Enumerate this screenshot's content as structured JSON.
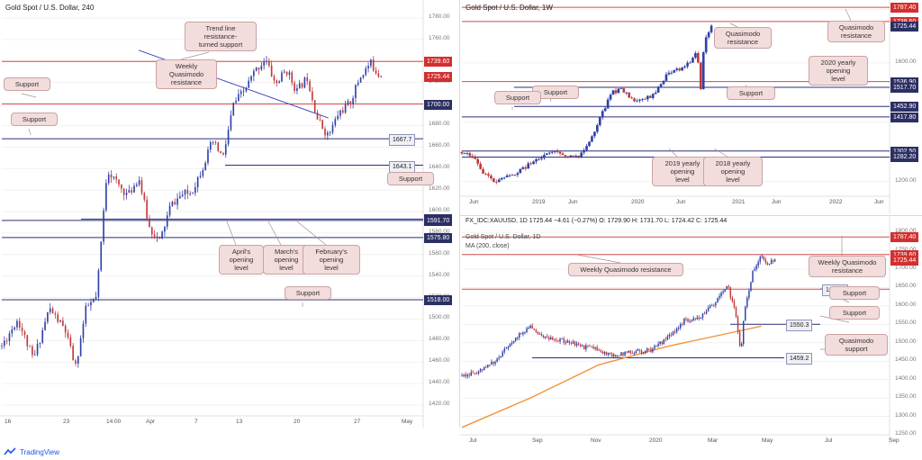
{
  "brand": {
    "name": "TradingView"
  },
  "colors": {
    "bull": "#2f40a8",
    "bear": "#c0393b",
    "resistance": "#d44a4a",
    "support": "#2b2f7a",
    "trend": "#3a44c2",
    "ma": "#f09438"
  },
  "panels": {
    "h4": {
      "title": "Gold Spot / U.S. Dollar, 240",
      "y_ticks": [
        "1780.00",
        "1760.00",
        "1740.00",
        "1720.00",
        "1700.00",
        "1680.00",
        "1660.00",
        "1640.00",
        "1620.00",
        "1600.00",
        "1580.00",
        "1560.00",
        "1540.00",
        "1520.00",
        "1500.00",
        "1480.00",
        "1460.00",
        "1440.00",
        "1420.00"
      ],
      "x_ticks": [
        "16",
        "23",
        "14:00",
        "Apr",
        "7",
        "13",
        "20",
        "27",
        "May"
      ],
      "price_tags": [
        {
          "text": "1739.60",
          "style": "red"
        },
        {
          "text": "1725.44",
          "style": "red"
        },
        {
          "text": "1700.00",
          "style": "navy"
        },
        {
          "text": "1667.7",
          "style": "gray"
        },
        {
          "text": "1643.1",
          "style": "gray"
        },
        {
          "text": "1593.00",
          "style": "navy"
        },
        {
          "text": "1591.70",
          "style": "navy"
        },
        {
          "text": "1575.80",
          "style": "navy"
        },
        {
          "text": "1518.00",
          "style": "navy"
        }
      ],
      "annotations": [
        {
          "text": "Trend line\nresistance-\nturned support"
        },
        {
          "text": "Weekly\nQuasimodo\nresistance"
        },
        {
          "text": "Support"
        },
        {
          "text": "Support"
        },
        {
          "text": "Support"
        },
        {
          "text": "April's\nopening\nlevel"
        },
        {
          "text": "March's\nopening\nlevel"
        },
        {
          "text": "February's\nopening\nlevel"
        },
        {
          "text": "Support"
        }
      ]
    },
    "weekly": {
      "title": "Gold Spot / U.S. Dollar, 1W",
      "y_ticks": [
        "1600.00",
        "1400.00",
        "1200.00"
      ],
      "x_ticks": [
        "Jun",
        "2019",
        "Jun",
        "2020",
        "Jun",
        "2021",
        "Jun",
        "2022",
        "Jun"
      ],
      "price_tags": [
        {
          "text": "1787.40",
          "style": "red"
        },
        {
          "text": "1739.60",
          "style": "red"
        },
        {
          "text": "1725.44",
          "style": "navy"
        },
        {
          "text": "1536.90",
          "style": "navy"
        },
        {
          "text": "1517.70",
          "style": "navy"
        },
        {
          "text": "1452.90",
          "style": "navy"
        },
        {
          "text": "1417.80",
          "style": "navy"
        },
        {
          "text": "1302.50",
          "style": "navy"
        },
        {
          "text": "1282.20",
          "style": "navy"
        }
      ],
      "annotations": [
        {
          "text": "Quasimodo\nresistance"
        },
        {
          "text": "Quasimodo\nresistance"
        },
        {
          "text": "2020 yearly\nopening\nlevel"
        },
        {
          "text": "Support"
        },
        {
          "text": "Support"
        },
        {
          "text": "Support"
        },
        {
          "text": "2019 yearly\nopening\nlevel"
        },
        {
          "text": "2018 yearly\nopening\nlevel"
        }
      ]
    },
    "daily": {
      "symbol_line": "FX_IDC:XAUUSD, 1D  1725.44  −4.61 (−0.27%)  O: 1729.90  H: 1731.70  L: 1724.42  C: 1725.44",
      "title": "Gold Spot / U.S. Dollar, 1D",
      "ma_label": "MA (200, close)",
      "y_ticks": [
        "1800.00",
        "1750.00",
        "1700.00",
        "1650.00",
        "1600.00",
        "1550.00",
        "1500.00",
        "1450.00",
        "1400.00",
        "1350.00",
        "1300.00",
        "1250.00"
      ],
      "x_ticks": [
        "Jul",
        "Sep",
        "Nov",
        "2020",
        "Mar",
        "May",
        "Jul",
        "Sep"
      ],
      "price_tags": [
        {
          "text": "1787.40",
          "style": "red"
        },
        {
          "text": "1739.60",
          "style": "red"
        },
        {
          "text": "1725.44",
          "style": "red"
        },
        {
          "text": "1645.5",
          "style": "gray"
        },
        {
          "text": "1550.3",
          "style": "gray"
        },
        {
          "text": "1459.2",
          "style": "gray"
        }
      ],
      "annotations": [
        {
          "text": "Weekly Quasimodo resistance"
        },
        {
          "text": "Weekly Quasimodo\nresistance"
        },
        {
          "text": "Support"
        },
        {
          "text": "Support"
        },
        {
          "text": "Quasimodo\nsupport"
        }
      ]
    }
  },
  "chart_data": [
    {
      "type": "candlestick",
      "title": "Gold Spot / U.S. Dollar, 240",
      "ylim": [
        1410,
        1790
      ],
      "last_close": 1725.44,
      "levels": [
        1739.6,
        1700.0,
        1667.7,
        1643.1,
        1593.0,
        1591.7,
        1575.8,
        1518.0
      ],
      "trend_line": [
        [
          13,
          1750
        ],
        [
          31,
          1687
        ]
      ],
      "x_range": [
        0,
        40
      ],
      "path": [
        [
          0,
          1475
        ],
        [
          1.5,
          1500
        ],
        [
          3,
          1462
        ],
        [
          4.5,
          1510
        ],
        [
          6,
          1490
        ],
        [
          7,
          1455
        ],
        [
          8,
          1510
        ],
        [
          9,
          1520
        ],
        [
          10,
          1640
        ],
        [
          11,
          1625
        ],
        [
          12,
          1615
        ],
        [
          13,
          1632
        ],
        [
          14,
          1585
        ],
        [
          15,
          1572
        ],
        [
          16,
          1605
        ],
        [
          17,
          1615
        ],
        [
          18,
          1618
        ],
        [
          19,
          1640
        ],
        [
          20,
          1665
        ],
        [
          21,
          1650
        ],
        [
          22,
          1700
        ],
        [
          23,
          1712
        ],
        [
          24,
          1730
        ],
        [
          25,
          1742
        ],
        [
          26,
          1718
        ],
        [
          27,
          1732
        ],
        [
          28,
          1712
        ],
        [
          29,
          1725
        ],
        [
          30,
          1685
        ],
        [
          31,
          1670
        ],
        [
          32,
          1692
        ],
        [
          33,
          1700
        ],
        [
          34,
          1725
        ],
        [
          35,
          1738
        ],
        [
          36,
          1725
        ]
      ]
    },
    {
      "type": "candlestick",
      "title": "Gold Spot / U.S. Dollar, 1W",
      "ylim": [
        1150,
        1800
      ],
      "last_close": 1725.44,
      "levels": [
        1787.4,
        1739.6,
        1536.9,
        1517.7,
        1452.9,
        1417.8,
        1302.5,
        1282.2
      ],
      "x_range": [
        0,
        120
      ],
      "path": [
        [
          0,
          1300
        ],
        [
          3,
          1290
        ],
        [
          6,
          1230
        ],
        [
          9,
          1195
        ],
        [
          12,
          1210
        ],
        [
          15,
          1230
        ],
        [
          18,
          1250
        ],
        [
          21,
          1280
        ],
        [
          24,
          1290
        ],
        [
          27,
          1305
        ],
        [
          30,
          1280
        ],
        [
          33,
          1290
        ],
        [
          36,
          1340
        ],
        [
          39,
          1420
        ],
        [
          42,
          1500
        ],
        [
          45,
          1510
        ],
        [
          48,
          1470
        ],
        [
          51,
          1480
        ],
        [
          54,
          1490
        ],
        [
          57,
          1555
        ],
        [
          60,
          1575
        ],
        [
          63,
          1590
        ],
        [
          66,
          1640
        ],
        [
          67,
          1515
        ],
        [
          68,
          1680
        ],
        [
          70,
          1725
        ]
      ]
    },
    {
      "type": "candlestick",
      "title": "Gold Spot / U.S. Dollar, 1D",
      "ylim": [
        1250,
        1810
      ],
      "last_close": 1725.44,
      "open": 1729.9,
      "high": 1731.7,
      "low": 1724.42,
      "close": 1725.44,
      "levels": [
        1787.4,
        1739.6,
        1645.5,
        1550.3,
        1459.2
      ],
      "ma_200": [
        [
          0,
          1270
        ],
        [
          40,
          1350
        ],
        [
          80,
          1440
        ],
        [
          120,
          1490
        ],
        [
          160,
          1530
        ],
        [
          175,
          1545
        ]
      ],
      "x_range": [
        0,
        250
      ],
      "path": [
        [
          0,
          1410
        ],
        [
          10,
          1420
        ],
        [
          20,
          1450
        ],
        [
          30,
          1510
        ],
        [
          40,
          1545
        ],
        [
          50,
          1510
        ],
        [
          60,
          1505
        ],
        [
          70,
          1490
        ],
        [
          80,
          1480
        ],
        [
          90,
          1465
        ],
        [
          100,
          1475
        ],
        [
          110,
          1480
        ],
        [
          120,
          1510
        ],
        [
          130,
          1560
        ],
        [
          140,
          1570
        ],
        [
          150,
          1620
        ],
        [
          155,
          1660
        ],
        [
          160,
          1580
        ],
        [
          163,
          1470
        ],
        [
          165,
          1580
        ],
        [
          170,
          1690
        ],
        [
          175,
          1740
        ],
        [
          178,
          1710
        ],
        [
          183,
          1725
        ]
      ]
    }
  ]
}
